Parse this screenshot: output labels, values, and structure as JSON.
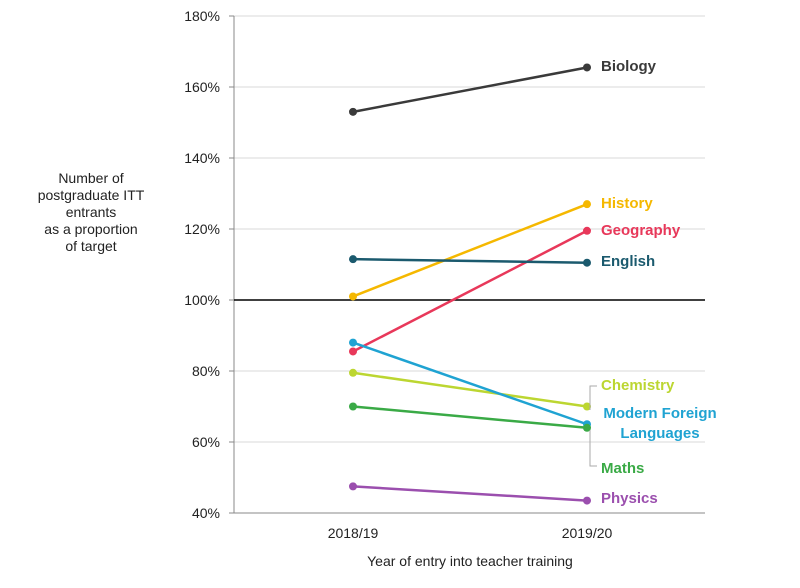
{
  "chart_data": {
    "type": "line",
    "ylabel_lines": [
      "Number of",
      "postgraduate ITT",
      "entrants",
      "as a proportion",
      "of target"
    ],
    "xlabel": "Year of entry into teacher training",
    "categories": [
      "2018/19",
      "2019/20"
    ],
    "ylim": [
      40,
      180
    ],
    "yticks": [
      40,
      60,
      80,
      100,
      120,
      140,
      160,
      180
    ],
    "ytick_labels": [
      "40%",
      "60%",
      "80%",
      "100%",
      "120%",
      "140%",
      "160%",
      "180%"
    ],
    "reference_line": 100,
    "grid": true,
    "series": [
      {
        "name": "Biology",
        "values": [
          153,
          165.5
        ],
        "color": "#3a3a3a",
        "label_lines": [
          "Biology"
        ]
      },
      {
        "name": "History",
        "values": [
          101,
          127
        ],
        "color": "#f5b800",
        "label_lines": [
          "History"
        ]
      },
      {
        "name": "Geography",
        "values": [
          85.5,
          119.5
        ],
        "color": "#e8385a",
        "label_lines": [
          "Geography"
        ]
      },
      {
        "name": "English",
        "values": [
          111.5,
          110.5
        ],
        "color": "#1b5a6e",
        "label_lines": [
          "English"
        ]
      },
      {
        "name": "Chemistry",
        "values": [
          79.5,
          70
        ],
        "color": "#bcd631",
        "label_lines": [
          "Chemistry"
        ]
      },
      {
        "name": "Modern Foreign Languages",
        "values": [
          88,
          65
        ],
        "color": "#1fa3d2",
        "label_lines": [
          "Modern Foreign",
          "Languages"
        ]
      },
      {
        "name": "Maths",
        "values": [
          70,
          64
        ],
        "color": "#3aaa46",
        "label_lines": [
          "Maths"
        ]
      },
      {
        "name": "Physics",
        "values": [
          47.5,
          43.5
        ],
        "color": "#9b4fae",
        "label_lines": [
          "Physics"
        ]
      }
    ]
  }
}
